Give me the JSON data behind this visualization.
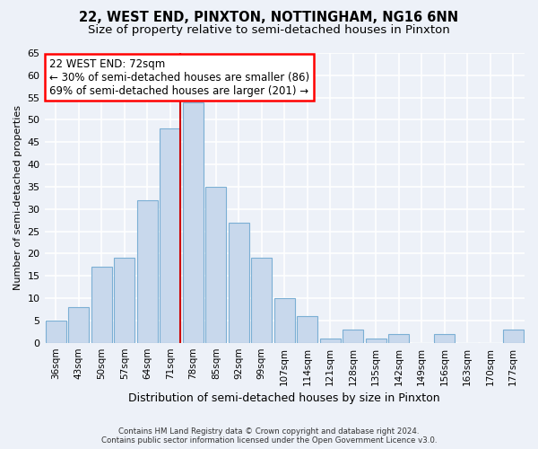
{
  "title1": "22, WEST END, PINXTON, NOTTINGHAM, NG16 6NN",
  "title2": "Size of property relative to semi-detached houses in Pinxton",
  "xlabel": "Distribution of semi-detached houses by size in Pinxton",
  "ylabel": "Number of semi-detached properties",
  "categories": [
    "36sqm",
    "43sqm",
    "50sqm",
    "57sqm",
    "64sqm",
    "71sqm",
    "78sqm",
    "85sqm",
    "92sqm",
    "99sqm",
    "107sqm",
    "114sqm",
    "121sqm",
    "128sqm",
    "135sqm",
    "142sqm",
    "149sqm",
    "156sqm",
    "163sqm",
    "170sqm",
    "177sqm"
  ],
  "values": [
    5,
    8,
    17,
    19,
    32,
    48,
    54,
    35,
    27,
    19,
    10,
    6,
    1,
    3,
    1,
    2,
    0,
    2,
    0,
    0,
    3
  ],
  "bar_color": "#c8d8ec",
  "bar_edge_color": "#7bafd4",
  "ylim": [
    0,
    65
  ],
  "yticks": [
    0,
    5,
    10,
    15,
    20,
    25,
    30,
    35,
    40,
    45,
    50,
    55,
    60,
    65
  ],
  "annotation_title": "22 WEST END: 72sqm",
  "annotation_line1": "← 30% of semi-detached houses are smaller (86)",
  "annotation_line2": "69% of semi-detached houses are larger (201) →",
  "footer1": "Contains HM Land Registry data © Crown copyright and database right 2024.",
  "footer2": "Contains public sector information licensed under the Open Government Licence v3.0.",
  "background_color": "#edf1f8",
  "plot_bg_color": "#edf1f8",
  "grid_color": "#ffffff",
  "property_bar_index": 5,
  "red_line_color": "#cc0000",
  "title1_fontsize": 10.5,
  "title2_fontsize": 9.5,
  "annotation_fontsize": 8.5,
  "ylabel_fontsize": 8,
  "xlabel_fontsize": 9
}
